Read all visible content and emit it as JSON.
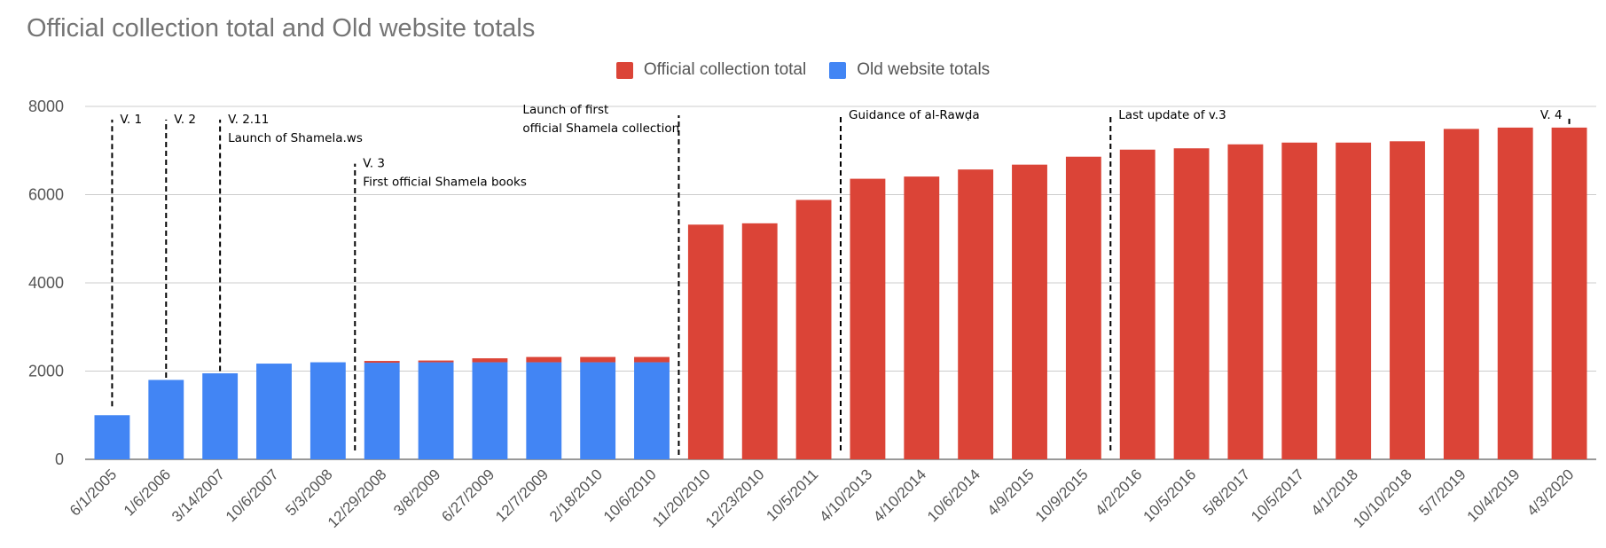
{
  "chart_data": {
    "type": "bar",
    "stacked": true,
    "title": "Official collection total and Old website totals",
    "xlabel": "",
    "ylabel": "",
    "ylim": [
      0,
      8000
    ],
    "yticks": [
      0,
      2000,
      4000,
      6000,
      8000
    ],
    "grid": true,
    "legend_position": "top",
    "categories": [
      "6/1/2005",
      "1/6/2006",
      "3/14/2007",
      "10/6/2007",
      "5/3/2008",
      "12/29/2008",
      "3/8/2009",
      "6/27/2009",
      "12/7/2009",
      "2/18/2010",
      "10/6/2010",
      "11/20/2010",
      "12/23/2010",
      "10/5/2011",
      "4/10/2013",
      "4/10/2014",
      "10/6/2014",
      "4/9/2015",
      "10/9/2015",
      "4/2/2016",
      "10/5/2016",
      "5/8/2017",
      "10/5/2017",
      "4/1/2018",
      "10/10/2018",
      "5/7/2019",
      "10/4/2019",
      "4/3/2020"
    ],
    "series": [
      {
        "name": "Old website totals",
        "color": "#4285f4",
        "values": [
          1000,
          1800,
          1950,
          2170,
          2200,
          2190,
          2200,
          2200,
          2200,
          2200,
          2200,
          0,
          0,
          0,
          0,
          0,
          0,
          0,
          0,
          0,
          0,
          0,
          0,
          0,
          0,
          0,
          0,
          0
        ]
      },
      {
        "name": "Official collection total",
        "color": "#db4437",
        "values": [
          0,
          0,
          0,
          0,
          0,
          40,
          40,
          90,
          120,
          120,
          120,
          5320,
          5350,
          5880,
          6360,
          6410,
          6570,
          6680,
          6860,
          7020,
          7050,
          7140,
          7180,
          7180,
          7210,
          7490,
          7520,
          7520
        ]
      }
    ],
    "legend_order": [
      "Official collection total",
      "Old website totals"
    ],
    "annotations": [
      {
        "at_category": 0,
        "lines": [
          "V. 1"
        ],
        "from_value": 1200,
        "to_value": 7700
      },
      {
        "at_category": 1,
        "lines": [
          "V. 2"
        ],
        "from_value": 1850,
        "to_value": 7700
      },
      {
        "at_category": 2,
        "lines": [
          "V. 2.11",
          "Launch of Shamela.ws"
        ],
        "from_value": 2000,
        "to_value": 7700
      },
      {
        "at_category": 4.5,
        "lines": [
          "V. 3",
          "First official Shamela books"
        ],
        "from_value": 200,
        "to_value": 6700
      },
      {
        "at_category": 10.5,
        "lines": [
          "Launch of first",
          "official Shamela collection"
        ],
        "from_value": 100,
        "to_value": 7800
      },
      {
        "at_category": 13.5,
        "lines": [
          "Guidance of al-Rawḍa"
        ],
        "from_value": 200,
        "to_value": 7800
      },
      {
        "at_category": 18.5,
        "lines": [
          "Last update of v.3"
        ],
        "from_value": 200,
        "to_value": 7800
      },
      {
        "at_category": 27,
        "lines": [
          "V. 4"
        ],
        "from_value": 7600,
        "to_value": 7800
      }
    ]
  }
}
